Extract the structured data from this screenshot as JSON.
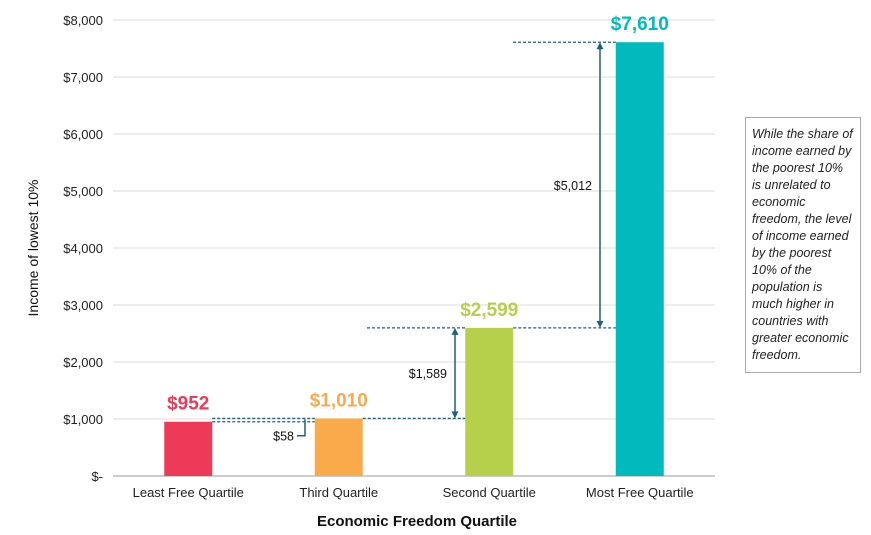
{
  "chart_data": {
    "type": "bar",
    "title": "",
    "xlabel": "Economic Freedom Quartile",
    "ylabel": "Income of lowest 10%",
    "categories": [
      "Least Free Quartile",
      "Third Quartile",
      "Second Quartile",
      "Most Free Quartile"
    ],
    "values": [
      952,
      1010,
      2599,
      7610
    ],
    "value_labels": [
      "$952",
      "$1,010",
      "$2,599",
      "$7,610"
    ],
    "colors": [
      "#ee3a59",
      "#f9aa4b",
      "#b6d04c",
      "#00babd"
    ],
    "ylim": [
      0,
      8000
    ],
    "yticks": [
      0,
      1000,
      2000,
      3000,
      4000,
      5000,
      6000,
      7000,
      8000
    ],
    "ytick_labels": [
      "$-",
      "$1,000",
      "$2,000",
      "$3,000",
      "$4,000",
      "$5,000",
      "$6,000",
      "$7,000",
      "$8,000"
    ],
    "grid": true,
    "annotations": [
      {
        "label": "$58",
        "from": 952,
        "to": 1010
      },
      {
        "label": "$1,589",
        "from": 1010,
        "to": 2599
      },
      {
        "label": "$5,012",
        "from": 2599,
        "to": 7610
      }
    ],
    "annotation_color": "#1f5f80"
  },
  "note": "While the share of income earned by the poorest 10% is unrelated to economic freedom, the level of income earned by the poorest 10% of the population is much higher in countries with greater economic freedom."
}
